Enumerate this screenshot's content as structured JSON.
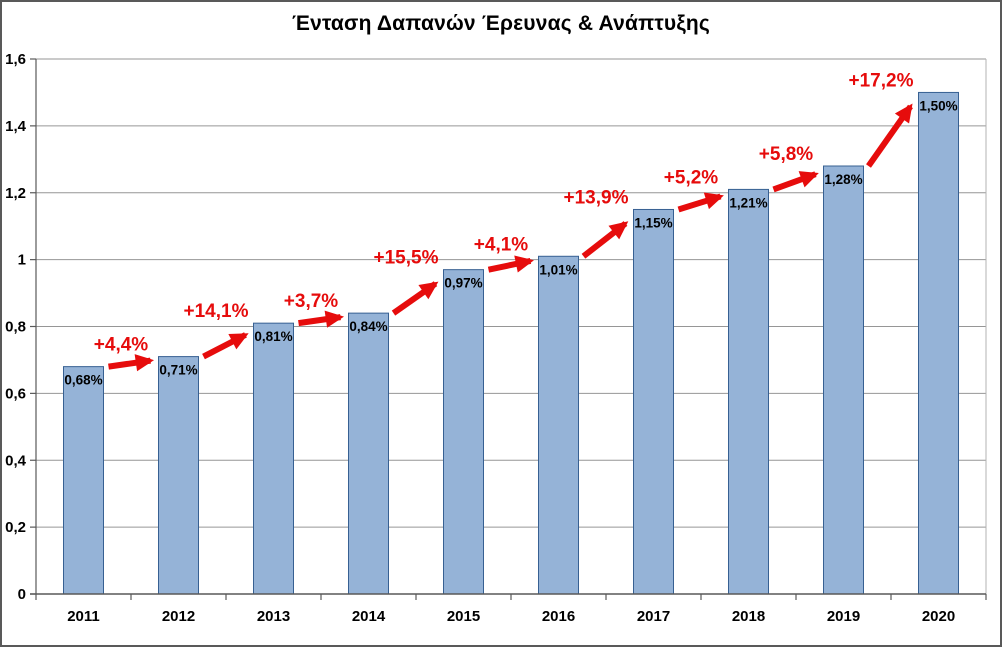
{
  "title": "Ένταση Δαπανών Έρευνας & Ανάπτυξης",
  "chart_data": {
    "type": "bar",
    "title": "Ένταση Δαπανών Έρευνας & Ανάπτυξης",
    "categories": [
      "2011",
      "2012",
      "2013",
      "2014",
      "2015",
      "2016",
      "2017",
      "2018",
      "2019",
      "2020"
    ],
    "values": [
      0.68,
      0.71,
      0.81,
      0.84,
      0.97,
      1.01,
      1.15,
      1.21,
      1.28,
      1.5
    ],
    "bar_labels": [
      "0,68%",
      "0,71%",
      "0,81%",
      "0,84%",
      "0,97%",
      "1,01%",
      "1,15%",
      "1,21%",
      "1,28%",
      "1,50%"
    ],
    "growth_labels": [
      "+4,4%",
      "+14,1%",
      "+3,7%",
      "+15,5%",
      "+4,1%",
      "+13,9%",
      "+5,2%",
      "+5,8%",
      "+17,2%"
    ],
    "growth_values": [
      4.4,
      14.1,
      3.7,
      15.5,
      4.1,
      13.9,
      5.2,
      5.8,
      17.2
    ],
    "xlabel": "",
    "ylabel": "",
    "ylim": [
      0,
      1.6
    ],
    "ytick_step": 0.2,
    "ytick_labels": [
      "0",
      "0,2",
      "0,4",
      "0,6",
      "0,8",
      "1",
      "1,2",
      "1,4",
      "1,6"
    ],
    "grid": true,
    "legend": false,
    "colors": {
      "bar_fill": "#95B3D7",
      "bar_border": "#376092",
      "arrow": "#E60C0C",
      "growth_text": "#E60C0C",
      "grid_line": "#969696",
      "axis_line": "#595959",
      "plot_right_border": "#B3B3B3",
      "text": "#000000",
      "background": "#FFFFFF"
    }
  }
}
